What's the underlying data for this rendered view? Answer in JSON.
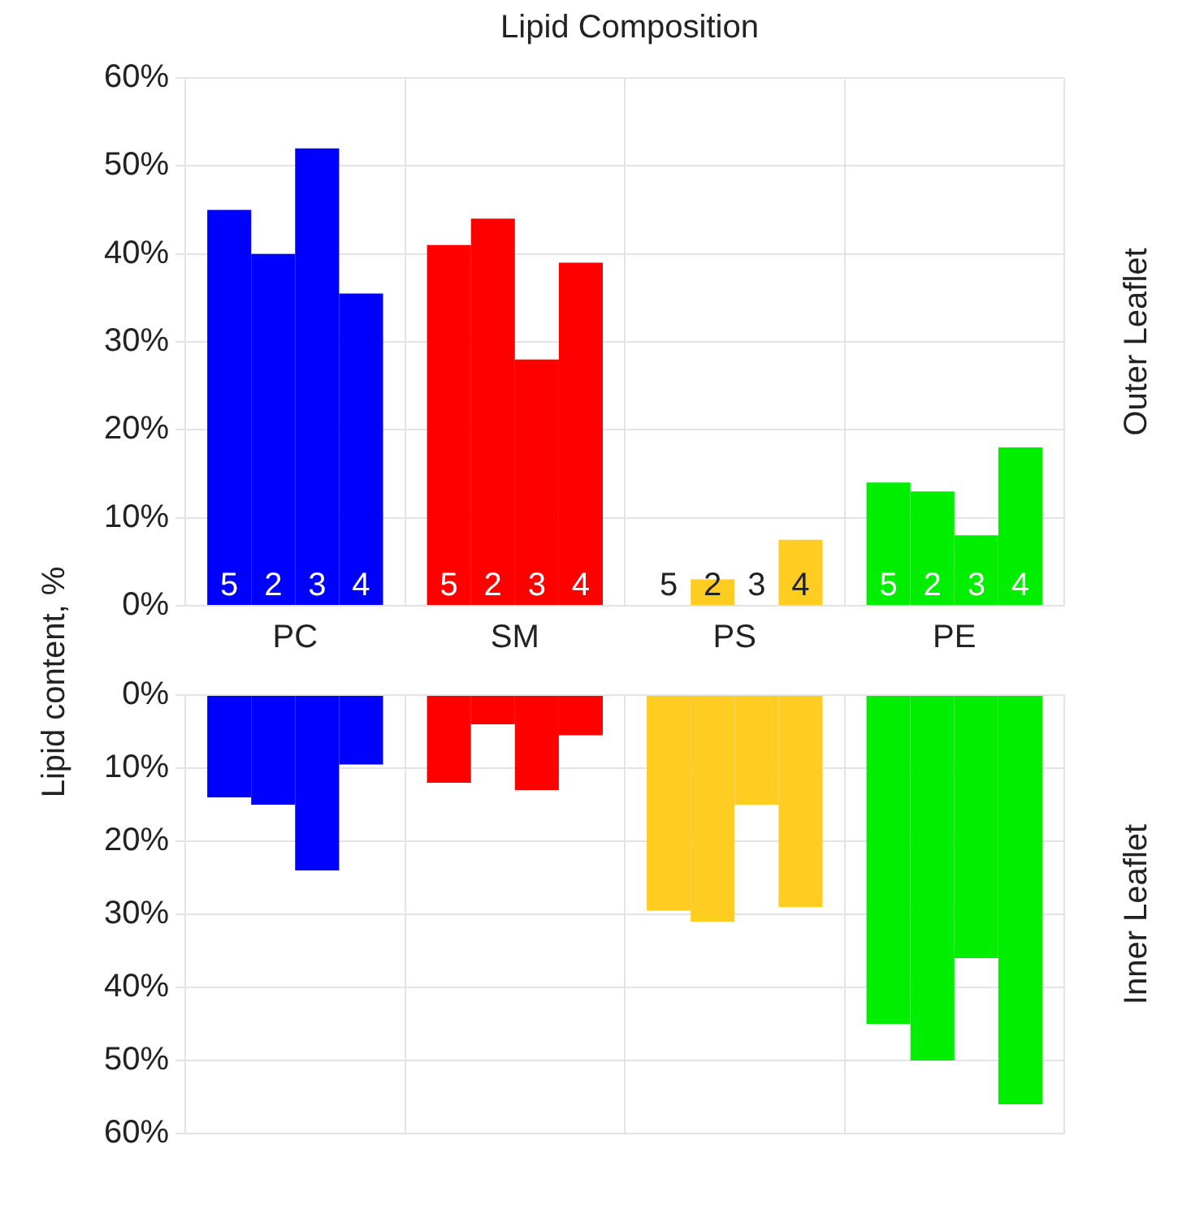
{
  "chart_data": [
    {
      "type": "bar",
      "title": "Lipid Composition",
      "ylabel": "Lipid content, %",
      "annotations": [
        "Outer Leaflet"
      ],
      "categories": [
        "PC",
        "SM",
        "PS",
        "PE"
      ],
      "series": [
        {
          "name": "5",
          "colors": [
            "#0000ff",
            "#ff0000",
            "#ffcc22",
            "#00ee00"
          ],
          "values": [
            45,
            41,
            0,
            14
          ]
        },
        {
          "name": "2",
          "colors": [
            "#0000ff",
            "#ff0000",
            "#ffcc22",
            "#00ee00"
          ],
          "values": [
            40,
            44,
            3,
            13
          ]
        },
        {
          "name": "3",
          "colors": [
            "#0000ff",
            "#ff0000",
            "#ffcc22",
            "#00ee00"
          ],
          "values": [
            52,
            28,
            0,
            8
          ]
        },
        {
          "name": "4",
          "colors": [
            "#0000ff",
            "#ff0000",
            "#ffcc22",
            "#00ee00"
          ],
          "values": [
            35.5,
            39,
            7.5,
            18
          ]
        }
      ],
      "ylim": [
        0,
        60
      ],
      "yticks": [
        {
          "value": 0,
          "label": "0%"
        },
        {
          "value": 10,
          "label": "10%"
        },
        {
          "value": 20,
          "label": "20%"
        },
        {
          "value": 30,
          "label": "30%"
        },
        {
          "value": 40,
          "label": "40%"
        },
        {
          "value": 50,
          "label": "50%"
        },
        {
          "value": 60,
          "label": "60%"
        }
      ],
      "grid": true,
      "legend": false
    },
    {
      "type": "bar",
      "annotations": [
        "Inner Leaflet"
      ],
      "categories": [
        null,
        null,
        null,
        null
      ],
      "series": [
        {
          "colors": [
            "#0000ff",
            "#ff0000",
            "#ffcc22",
            "#00ee00"
          ],
          "values": [
            14,
            12,
            29.5,
            45
          ]
        },
        {
          "colors": [
            "#0000ff",
            "#ff0000",
            "#ffcc22",
            "#00ee00"
          ],
          "values": [
            15,
            4,
            31,
            50
          ]
        },
        {
          "colors": [
            "#0000ff",
            "#ff0000",
            "#ffcc22",
            "#00ee00"
          ],
          "values": [
            24,
            13,
            15,
            36
          ]
        },
        {
          "colors": [
            "#0000ff",
            "#ff0000",
            "#ffcc22",
            "#00ee00"
          ],
          "values": [
            9.5,
            5.5,
            29,
            56
          ]
        }
      ],
      "ylim": [
        60,
        0
      ],
      "yticks": [
        {
          "value": 0,
          "label": "0%"
        },
        {
          "value": 10,
          "label": "10%"
        },
        {
          "value": 20,
          "label": "20%"
        },
        {
          "value": 30,
          "label": "30%"
        },
        {
          "value": 40,
          "label": "40%"
        },
        {
          "value": 50,
          "label": "50%"
        },
        {
          "value": 60,
          "label": "60%"
        }
      ],
      "grid": true,
      "legend": false
    }
  ]
}
